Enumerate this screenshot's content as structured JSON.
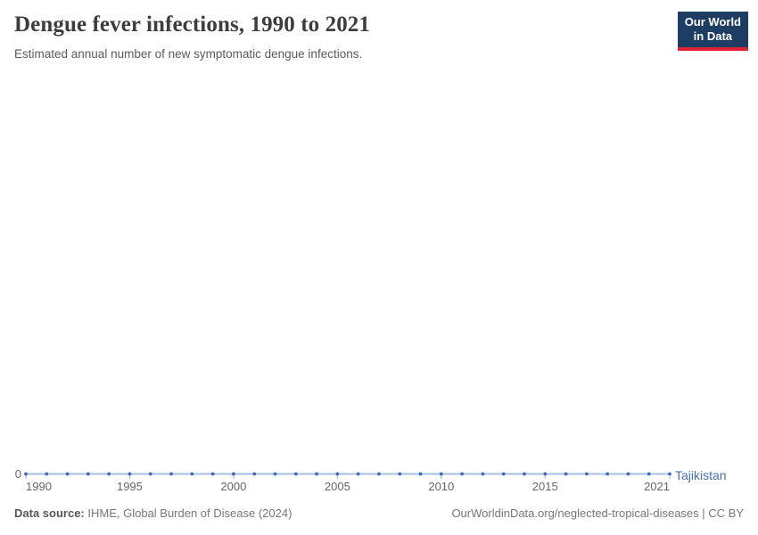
{
  "header": {
    "title": "Dengue fever infections, 1990 to 2021",
    "subtitle": "Estimated annual number of new symptomatic dengue infections."
  },
  "logo": {
    "line1": "Our World",
    "line2": "in Data",
    "bg_color": "#1d3d63",
    "stripe_color": "#e02339"
  },
  "chart_data": {
    "type": "line",
    "title": "Dengue fever infections, 1990 to 2021",
    "subtitle": "Estimated annual number of new symptomatic dengue infections.",
    "xlabel": "",
    "ylabel": "",
    "x_range": [
      1990,
      2021
    ],
    "ylim": [
      0,
      1
    ],
    "grid": "off",
    "legend_position": "end-of-line",
    "x_ticks": [
      1990,
      1995,
      2000,
      2005,
      2010,
      2015,
      2021
    ],
    "y_axis": {
      "min_label": "0"
    },
    "x": [
      1990,
      1991,
      1992,
      1993,
      1994,
      1995,
      1996,
      1997,
      1998,
      1999,
      2000,
      2001,
      2002,
      2003,
      2004,
      2005,
      2006,
      2007,
      2008,
      2009,
      2010,
      2011,
      2012,
      2013,
      2014,
      2015,
      2016,
      2017,
      2018,
      2019,
      2020,
      2021
    ],
    "series": [
      {
        "name": "Tajikistan",
        "values": [
          0,
          0,
          0,
          0,
          0,
          0,
          0,
          0,
          0,
          0,
          0,
          0,
          0,
          0,
          0,
          0,
          0,
          0,
          0,
          0,
          0,
          0,
          0,
          0,
          0,
          0,
          0,
          0,
          0,
          0,
          0,
          0
        ],
        "marker_color": "#3d6bad",
        "line_color": "#a6c0e2",
        "label_color": "#4572b2"
      }
    ]
  },
  "footer": {
    "data_source_label": "Data source:",
    "data_source_text": " IHME, Global Burden of Disease (2024)",
    "right_text": "OurWorldinData.org/neglected-tropical-diseases | CC BY"
  }
}
